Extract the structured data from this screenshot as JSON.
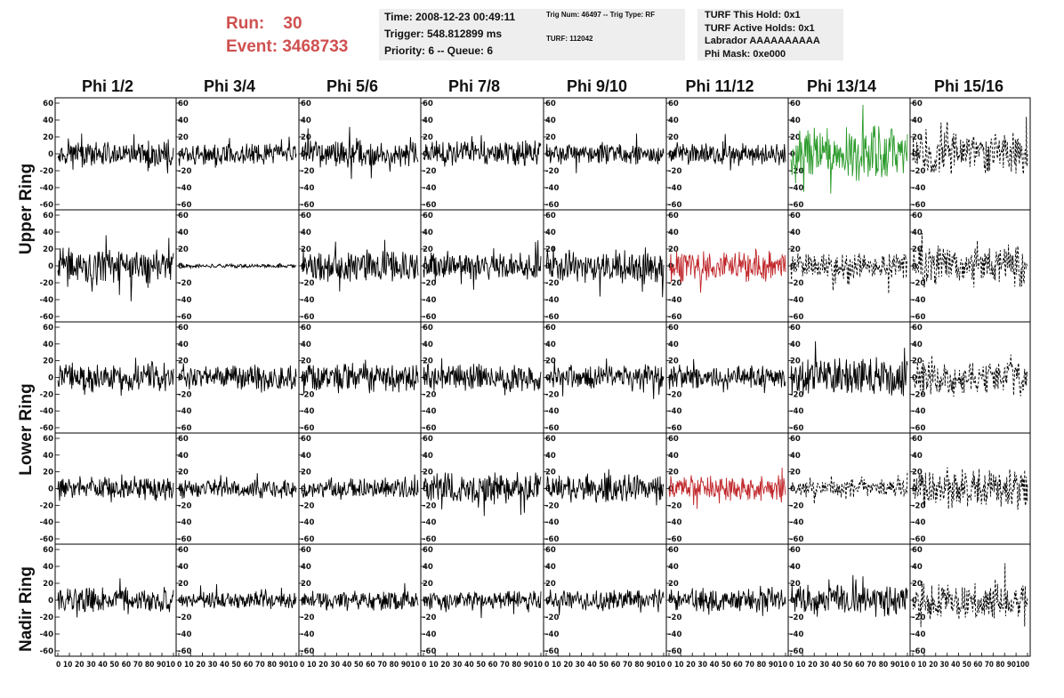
{
  "header": {
    "run_label": "Run:",
    "run_value": "30",
    "event_label": "Event:",
    "event_value": "3468733",
    "time": "Time: 2008-12-23 00:49:11",
    "trigger": "Trigger: 548.812899 ms",
    "priority": "Priority: 6 -- Queue: 6",
    "trig_num": "Trig Num: 46497 -- Trig Type: RF",
    "turf": "TURF: 112042",
    "turf_hold": "TURF This Hold: 0x1",
    "turf_active": "TURF Active Holds: 0x1",
    "labrador": "Labrador AAAAAAAAAA",
    "phi_mask": "Phi Mask: 0xe000"
  },
  "columns": [
    "Phi 1/2",
    "Phi 3/4",
    "Phi 5/6",
    "Phi 7/8",
    "Phi 9/10",
    "Phi 11/12",
    "Phi 13/14",
    "Phi 15/16"
  ],
  "ring_labels": {
    "upper": "Upper Ring",
    "lower": "Lower Ring",
    "nadir": "Nadir Ring"
  },
  "colors": {
    "run_text": "#d05050",
    "info_bg": "#eeeeee",
    "trace_default": "#000000",
    "trace_red": "#c0262a",
    "trace_green": "#2a9a2a"
  },
  "chart_data": {
    "type": "line",
    "description_rows": 5,
    "description_cols": 8,
    "x_range": [
      0,
      100
    ],
    "y_range": [
      -60,
      60
    ],
    "y_ticks": [
      -60,
      -40,
      -20,
      0,
      20,
      40,
      60
    ],
    "x_tick_labels": [
      "0",
      "10",
      "20",
      "30",
      "40",
      "50",
      "60",
      "70",
      "80",
      "90",
      "100"
    ],
    "bottom_axis_labels": [
      "0 10 20 30 40 50 60 70 80 9010",
      "0 10 20 30 40 50 60 70 80 9010",
      "0 10 20 30 40 50 60 70 80 9010",
      "0 10 20 30 40 50 60 70 80 9010",
      "0 10 20 30 40 50 60 70 80 9010",
      "0 10 20 30 40 50 60 70 80 9010",
      "0 10 20 30 40 50 60 70 80 9010",
      "0 10 20 30 40 50 60 70 80 90100"
    ],
    "panels": [
      [
        {
          "amp": 14,
          "style": "solid",
          "color": "black"
        },
        {
          "amp": 12,
          "style": "solid",
          "color": "black"
        },
        {
          "amp": 14,
          "style": "solid",
          "color": "black"
        },
        {
          "amp": 13,
          "style": "solid",
          "color": "black"
        },
        {
          "amp": 11,
          "style": "solid",
          "color": "black"
        },
        {
          "amp": 12,
          "style": "solid",
          "color": "black"
        },
        {
          "amp": 28,
          "style": "solid",
          "color": "green"
        },
        {
          "amp": 22,
          "style": "dashed",
          "color": "black"
        }
      ],
      [
        {
          "amp": 18,
          "style": "solid",
          "color": "black"
        },
        {
          "amp": 2,
          "style": "solid",
          "color": "black"
        },
        {
          "amp": 16,
          "style": "solid",
          "color": "black"
        },
        {
          "amp": 15,
          "style": "solid",
          "color": "black"
        },
        {
          "amp": 17,
          "style": "solid",
          "color": "black"
        },
        {
          "amp": 16,
          "style": "solid",
          "color": "red"
        },
        {
          "amp": 14,
          "style": "dashed",
          "color": "black"
        },
        {
          "amp": 20,
          "style": "dashed",
          "color": "black"
        }
      ],
      [
        {
          "amp": 15,
          "style": "solid",
          "color": "black"
        },
        {
          "amp": 14,
          "style": "solid",
          "color": "black"
        },
        {
          "amp": 15,
          "style": "solid",
          "color": "black"
        },
        {
          "amp": 14,
          "style": "solid",
          "color": "black"
        },
        {
          "amp": 12,
          "style": "solid",
          "color": "black"
        },
        {
          "amp": 12,
          "style": "solid",
          "color": "black"
        },
        {
          "amp": 20,
          "style": "solid",
          "color": "black"
        },
        {
          "amp": 18,
          "style": "dashed",
          "color": "black"
        }
      ],
      [
        {
          "amp": 13,
          "style": "solid",
          "color": "black"
        },
        {
          "amp": 9,
          "style": "solid",
          "color": "black"
        },
        {
          "amp": 10,
          "style": "solid",
          "color": "black"
        },
        {
          "amp": 17,
          "style": "solid",
          "color": "black"
        },
        {
          "amp": 15,
          "style": "solid",
          "color": "black"
        },
        {
          "amp": 13,
          "style": "solid",
          "color": "red"
        },
        {
          "amp": 10,
          "style": "dashed",
          "color": "black"
        },
        {
          "amp": 20,
          "style": "dashed",
          "color": "black"
        }
      ],
      [
        {
          "amp": 13,
          "style": "solid",
          "color": "black"
        },
        {
          "amp": 9,
          "style": "solid",
          "color": "black"
        },
        {
          "amp": 10,
          "style": "solid",
          "color": "black"
        },
        {
          "amp": 10,
          "style": "solid",
          "color": "black"
        },
        {
          "amp": 11,
          "style": "solid",
          "color": "black"
        },
        {
          "amp": 12,
          "style": "solid",
          "color": "black"
        },
        {
          "amp": 16,
          "style": "solid",
          "color": "black"
        },
        {
          "amp": 19,
          "style": "dashed",
          "color": "black"
        }
      ]
    ]
  }
}
